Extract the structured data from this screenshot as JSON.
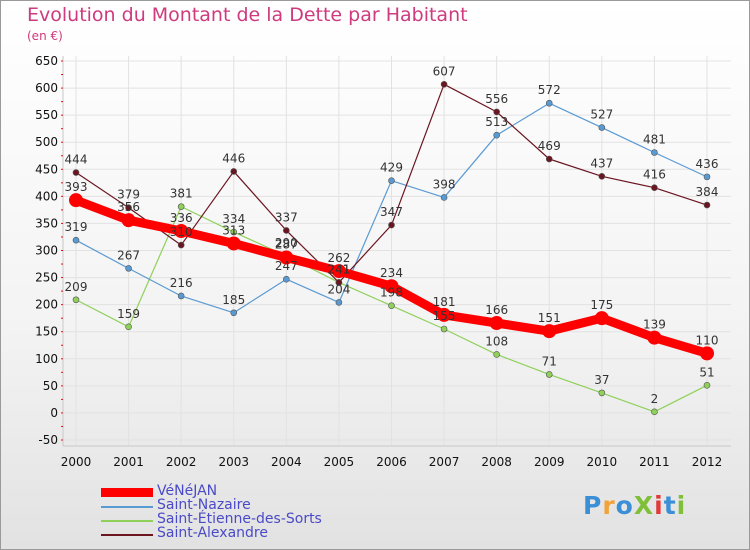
{
  "title": "Evolution du Montant de la Dette par Habitant",
  "unit": "(en €)",
  "logo": {
    "text": "ProXiti",
    "colors": [
      "#3a8fd6",
      "#f2a23a",
      "#3a8fd6",
      "#7fbf3a",
      "#e03a3a",
      "#3a8fd6",
      "#7fbf3a"
    ]
  },
  "chart_data": {
    "type": "line",
    "title": "Evolution du Montant de la Dette par Habitant",
    "ylabel": "(en €)",
    "x": [
      "2000",
      "2001",
      "2002",
      "2003",
      "2004",
      "2005",
      "2006",
      "2007",
      "2008",
      "2009",
      "2010",
      "2011",
      "2012"
    ],
    "ylim": [
      -50,
      650
    ],
    "yticks": [
      "-50",
      "0",
      "50",
      "100",
      "150",
      "200",
      "250",
      "300",
      "350",
      "400",
      "450",
      "500",
      "550",
      "600",
      "650"
    ],
    "grid": true,
    "legend_position": "bottom-left",
    "series": [
      {
        "name": "Saint-Étienne-des-Sorts",
        "color": "#8fd05a",
        "values": [
          209,
          159,
          381,
          334,
          290,
          241,
          198,
          155,
          108,
          71,
          37,
          2,
          51
        ]
      },
      {
        "name": "Saint-Nazaire",
        "color": "#5a9ad3",
        "values": [
          319,
          267,
          216,
          185,
          247,
          204,
          429,
          398,
          513,
          572,
          527,
          481,
          436
        ]
      },
      {
        "name": "Saint-Alexandre",
        "color": "#6b1520",
        "values": [
          444,
          379,
          310,
          446,
          337,
          241,
          347,
          607,
          556,
          469,
          437,
          416,
          384
        ]
      },
      {
        "name": "VéNéJAN",
        "color": "#ff0000",
        "values": [
          393,
          356,
          336,
          313,
          287,
          262,
          234,
          181,
          166,
          151,
          175,
          139,
          110
        ]
      }
    ]
  },
  "legend": [
    {
      "label": "VéNéJAN",
      "color": "#ff0000",
      "thick": true
    },
    {
      "label": "Saint-Nazaire",
      "color": "#5a9ad3",
      "thick": false
    },
    {
      "label": "Saint-Étienne-des-Sorts",
      "color": "#8fd05a",
      "thick": false
    },
    {
      "label": "Saint-Alexandre",
      "color": "#6b1520",
      "thick": false
    }
  ]
}
